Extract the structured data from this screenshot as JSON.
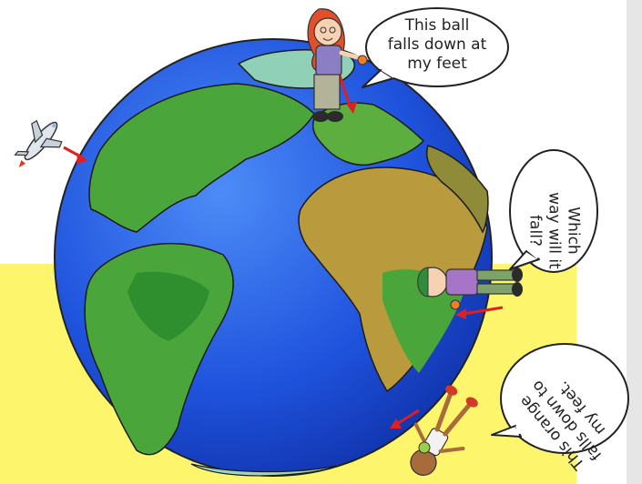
{
  "bubbles": {
    "top": {
      "lines": [
        "This ball",
        "falls down at",
        "my feet"
      ]
    },
    "right": {
      "lines": [
        "Which",
        "way will it",
        "fall?"
      ]
    },
    "bottom": {
      "lines": [
        "This orange",
        "falls down to",
        "my feet."
      ]
    }
  },
  "colors": {
    "ocean": "#1e4fd8",
    "land": "#4aa63a",
    "desert": "#b99a3c",
    "background_band": "#fdf56c",
    "arrow": "#e02020"
  },
  "icons": [
    "earth-globe",
    "airplane-icon",
    "girl-figure",
    "boy-figure",
    "player-figure",
    "ball-icon"
  ]
}
